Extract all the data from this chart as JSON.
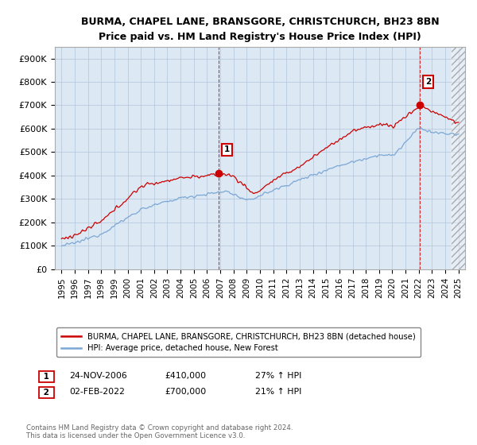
{
  "title": "BURMA, CHAPEL LANE, BRANSGORE, CHRISTCHURCH, BH23 8BN",
  "subtitle": "Price paid vs. HM Land Registry's House Price Index (HPI)",
  "ylim": [
    0,
    950000
  ],
  "yticks": [
    0,
    100000,
    200000,
    300000,
    400000,
    500000,
    600000,
    700000,
    800000,
    900000
  ],
  "ytick_labels": [
    "£0",
    "£100K",
    "£200K",
    "£300K",
    "£400K",
    "£500K",
    "£600K",
    "£700K",
    "£800K",
    "£900K"
  ],
  "red_color": "#cc0000",
  "blue_color": "#7ba7d4",
  "plot_bg_color": "#dce9f5",
  "dashed_red_color": "#cc0000",
  "marker1_x_year": 2006.9,
  "marker1_y": 410000,
  "marker1_label": "1",
  "marker1_date": "24-NOV-2006",
  "marker1_price": "£410,000",
  "marker1_hpi": "27% ↑ HPI",
  "marker2_x_year": 2022.08,
  "marker2_y": 700000,
  "marker2_label": "2",
  "marker2_date": "02-FEB-2022",
  "marker2_price": "£700,000",
  "marker2_hpi": "21% ↑ HPI",
  "legend_label_red": "BURMA, CHAPEL LANE, BRANSGORE, CHRISTCHURCH, BH23 8BN (detached house)",
  "legend_label_blue": "HPI: Average price, detached house, New Forest",
  "footer": "Contains HM Land Registry data © Crown copyright and database right 2024.\nThis data is licensed under the Open Government Licence v3.0.",
  "background_color": "#ffffff",
  "grid_color": "#b0c4d8",
  "xmin": 1995,
  "xmax": 2025
}
